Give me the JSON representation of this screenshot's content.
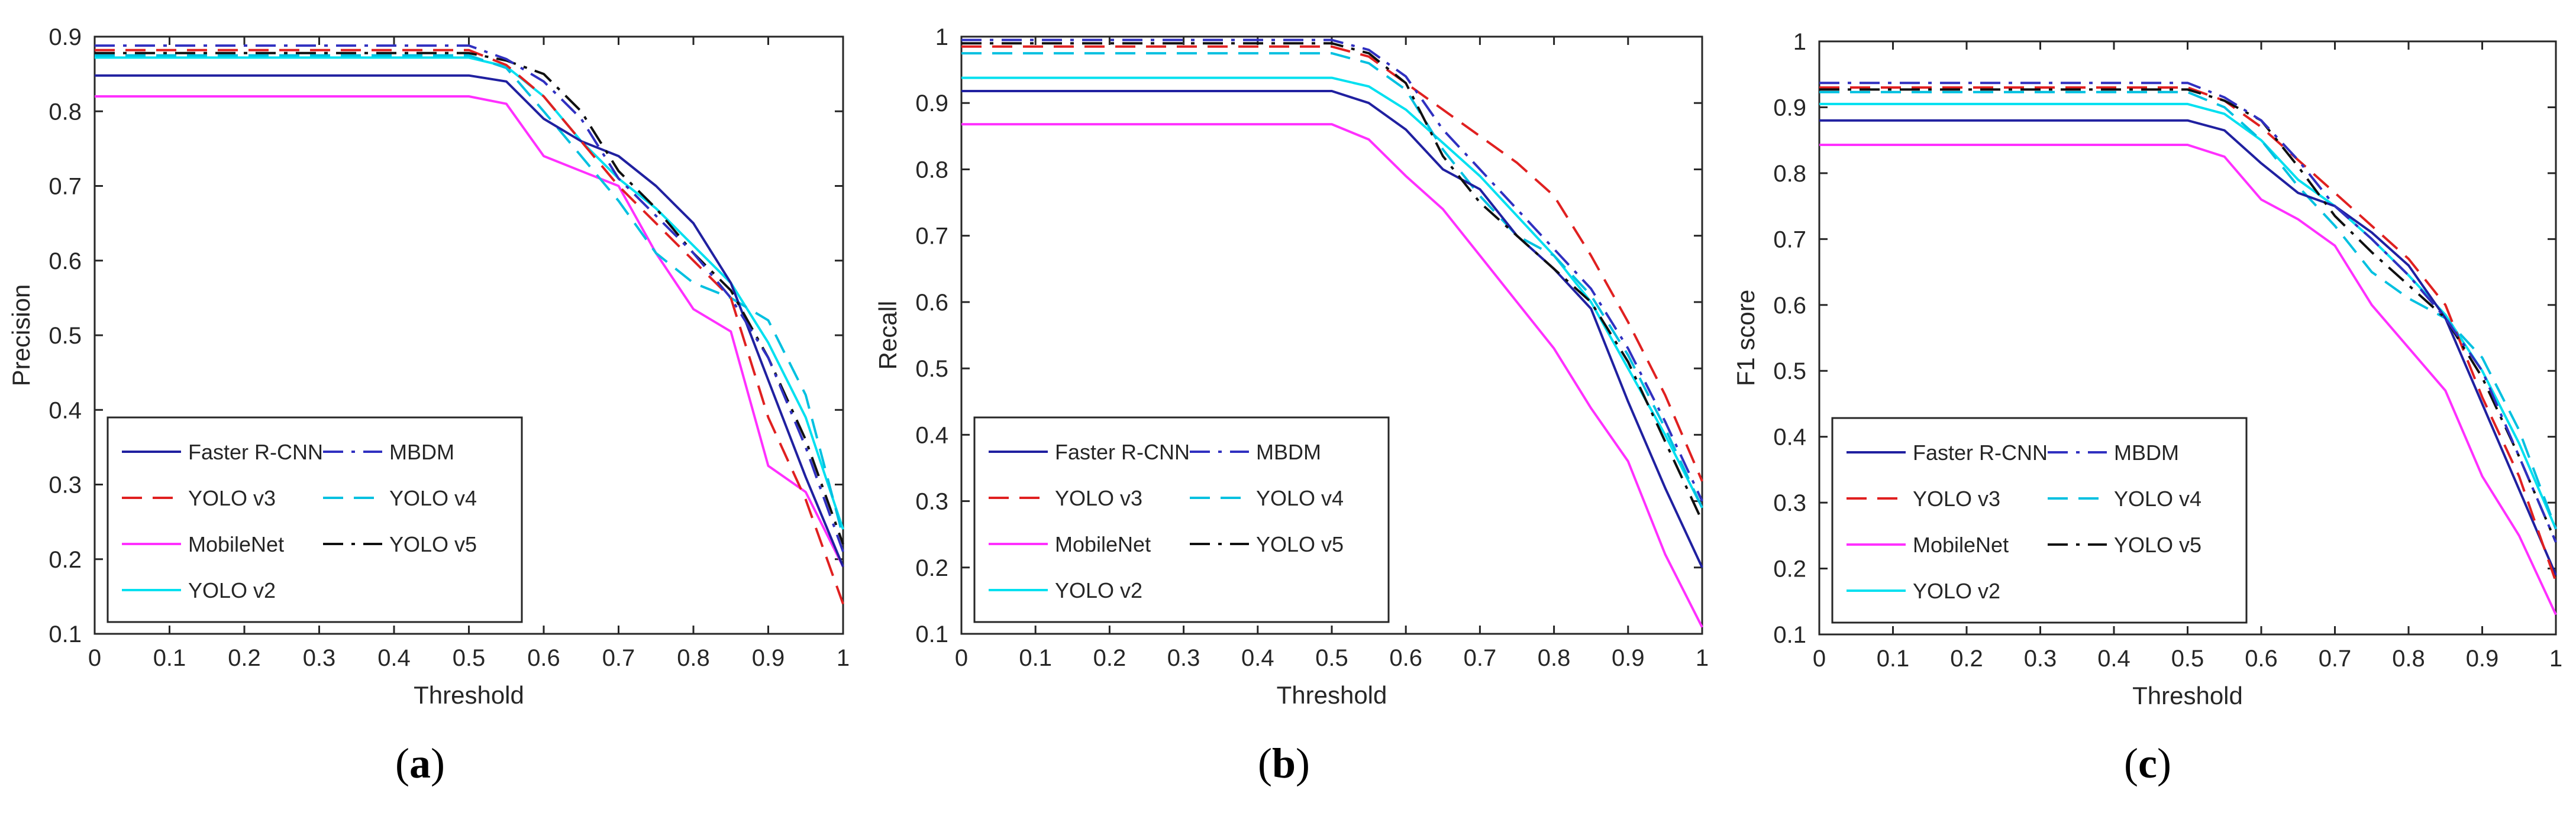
{
  "chart_data": [
    {
      "type": "line",
      "panel_label": "a",
      "xlabel": "Threshold",
      "ylabel": "Precision",
      "xlim": [
        0,
        1
      ],
      "ylim": [
        0.1,
        0.9
      ],
      "xticks": [
        "0",
        "0.1",
        "0.2",
        "0.3",
        "0.4",
        "0.5",
        "0.6",
        "0.7",
        "0.8",
        "0.9",
        "1"
      ],
      "yticks": [
        "0.1",
        "0.2",
        "0.3",
        "0.4",
        "0.5",
        "0.6",
        "0.7",
        "0.8",
        "0.9"
      ],
      "legend_position": "bottom-left",
      "series": [
        {
          "name": "Faster R-CNN",
          "x": [
            0,
            0.5,
            0.55,
            0.6,
            0.65,
            0.7,
            0.75,
            0.8,
            0.85,
            0.9,
            0.95,
            1.0
          ],
          "values": [
            0.848,
            0.848,
            0.84,
            0.79,
            0.76,
            0.74,
            0.7,
            0.65,
            0.57,
            0.44,
            0.31,
            0.19
          ]
        },
        {
          "name": "MBDM",
          "x": [
            0,
            0.5,
            0.55,
            0.6,
            0.65,
            0.7,
            0.75,
            0.8,
            0.85,
            0.9,
            0.95,
            1.0
          ],
          "values": [
            0.888,
            0.888,
            0.87,
            0.84,
            0.79,
            0.71,
            0.66,
            0.61,
            0.55,
            0.47,
            0.35,
            0.21
          ]
        },
        {
          "name": "YOLO v3",
          "x": [
            0,
            0.5,
            0.55,
            0.6,
            0.65,
            0.7,
            0.75,
            0.8,
            0.85,
            0.9,
            0.95,
            1.0
          ],
          "values": [
            0.882,
            0.882,
            0.862,
            0.82,
            0.76,
            0.7,
            0.65,
            0.6,
            0.55,
            0.39,
            0.28,
            0.14
          ]
        },
        {
          "name": "YOLO v4",
          "x": [
            0,
            0.5,
            0.55,
            0.6,
            0.65,
            0.7,
            0.75,
            0.8,
            0.85,
            0.9,
            0.95,
            1.0
          ],
          "values": [
            0.875,
            0.875,
            0.858,
            0.8,
            0.74,
            0.68,
            0.61,
            0.57,
            0.55,
            0.52,
            0.42,
            0.23
          ]
        },
        {
          "name": "MobileNet",
          "x": [
            0,
            0.5,
            0.55,
            0.6,
            0.65,
            0.7,
            0.75,
            0.8,
            0.85,
            0.9,
            0.95,
            1.0
          ],
          "values": [
            0.82,
            0.82,
            0.81,
            0.74,
            0.72,
            0.7,
            0.61,
            0.535,
            0.505,
            0.325,
            0.29,
            0.19
          ]
        },
        {
          "name": "YOLO v5",
          "x": [
            0,
            0.5,
            0.55,
            0.6,
            0.65,
            0.7,
            0.75,
            0.8,
            0.85,
            0.9,
            0.95,
            1.0
          ],
          "values": [
            0.878,
            0.878,
            0.868,
            0.85,
            0.8,
            0.72,
            0.67,
            0.61,
            0.56,
            0.47,
            0.36,
            0.22
          ]
        },
        {
          "name": "YOLO v2",
          "x": [
            0,
            0.5,
            0.55,
            0.6,
            0.65,
            0.7,
            0.75,
            0.8,
            0.85,
            0.9,
            0.95,
            1.0
          ],
          "values": [
            0.872,
            0.872,
            0.86,
            0.82,
            0.76,
            0.71,
            0.67,
            0.62,
            0.57,
            0.49,
            0.39,
            0.24
          ]
        }
      ]
    },
    {
      "type": "line",
      "panel_label": "b",
      "xlabel": "Threshold",
      "ylabel": "Recall",
      "xlim": [
        0,
        1
      ],
      "ylim": [
        0.1,
        1
      ],
      "xticks": [
        "0",
        "0.1",
        "0.2",
        "0.3",
        "0.4",
        "0.5",
        "0.6",
        "0.7",
        "0.8",
        "0.9",
        "1"
      ],
      "yticks": [
        "0.1",
        "0.2",
        "0.3",
        "0.4",
        "0.5",
        "0.6",
        "0.7",
        "0.8",
        "0.9",
        "1"
      ],
      "legend_position": "bottom-left",
      "series": [
        {
          "name": "Faster R-CNN",
          "x": [
            0,
            0.5,
            0.55,
            0.6,
            0.65,
            0.7,
            0.75,
            0.8,
            0.85,
            0.9,
            0.95,
            1.0
          ],
          "values": [
            0.918,
            0.918,
            0.9,
            0.86,
            0.8,
            0.77,
            0.7,
            0.65,
            0.59,
            0.45,
            0.32,
            0.2
          ]
        },
        {
          "name": "MBDM",
          "x": [
            0,
            0.5,
            0.55,
            0.6,
            0.65,
            0.7,
            0.75,
            0.8,
            0.85,
            0.9,
            0.95,
            1.0
          ],
          "values": [
            0.995,
            0.995,
            0.98,
            0.94,
            0.86,
            0.8,
            0.74,
            0.68,
            0.62,
            0.53,
            0.42,
            0.3
          ]
        },
        {
          "name": "YOLO v3",
          "x": [
            0,
            0.5,
            0.55,
            0.6,
            0.65,
            0.7,
            0.75,
            0.8,
            0.85,
            0.9,
            0.95,
            1.0
          ],
          "values": [
            0.985,
            0.985,
            0.97,
            0.93,
            0.89,
            0.85,
            0.81,
            0.76,
            0.67,
            0.57,
            0.46,
            0.33
          ]
        },
        {
          "name": "YOLO v4",
          "x": [
            0,
            0.5,
            0.55,
            0.6,
            0.65,
            0.7,
            0.75,
            0.8,
            0.85,
            0.9,
            0.95,
            1.0
          ],
          "values": [
            0.975,
            0.975,
            0.96,
            0.92,
            0.83,
            0.76,
            0.7,
            0.67,
            0.61,
            0.52,
            0.41,
            0.29
          ]
        },
        {
          "name": "MobileNet",
          "x": [
            0,
            0.5,
            0.55,
            0.6,
            0.65,
            0.7,
            0.75,
            0.8,
            0.85,
            0.9,
            0.95,
            1.0
          ],
          "values": [
            0.868,
            0.868,
            0.845,
            0.79,
            0.74,
            0.67,
            0.6,
            0.53,
            0.44,
            0.36,
            0.22,
            0.11
          ]
        },
        {
          "name": "YOLO v5",
          "x": [
            0,
            0.5,
            0.55,
            0.6,
            0.65,
            0.7,
            0.75,
            0.8,
            0.85,
            0.9,
            0.95,
            1.0
          ],
          "values": [
            0.99,
            0.99,
            0.975,
            0.93,
            0.82,
            0.75,
            0.7,
            0.65,
            0.6,
            0.51,
            0.39,
            0.27
          ]
        },
        {
          "name": "YOLO v2",
          "x": [
            0,
            0.5,
            0.55,
            0.6,
            0.65,
            0.7,
            0.75,
            0.8,
            0.85,
            0.9,
            0.95,
            1.0
          ],
          "values": [
            0.938,
            0.938,
            0.925,
            0.89,
            0.84,
            0.79,
            0.73,
            0.67,
            0.6,
            0.5,
            0.4,
            0.29
          ]
        }
      ]
    },
    {
      "type": "line",
      "panel_label": "c",
      "xlabel": "Threshold",
      "ylabel": "F1 score",
      "xlim": [
        0,
        1
      ],
      "ylim": [
        0.1,
        1
      ],
      "xticks": [
        "0",
        "0.1",
        "0.2",
        "0.3",
        "0.4",
        "0.5",
        "0.6",
        "0.7",
        "0.8",
        "0.9",
        "1"
      ],
      "yticks": [
        "0.1",
        "0.2",
        "0.3",
        "0.4",
        "0.5",
        "0.6",
        "0.7",
        "0.8",
        "0.9",
        "1"
      ],
      "legend_position": "bottom-left",
      "series": [
        {
          "name": "Faster R-CNN",
          "x": [
            0,
            0.5,
            0.55,
            0.6,
            0.65,
            0.7,
            0.75,
            0.8,
            0.85,
            0.9,
            0.95,
            1.0
          ],
          "values": [
            0.88,
            0.88,
            0.865,
            0.815,
            0.77,
            0.75,
            0.71,
            0.66,
            0.58,
            0.45,
            0.32,
            0.19
          ]
        },
        {
          "name": "MBDM",
          "x": [
            0,
            0.5,
            0.55,
            0.6,
            0.65,
            0.7,
            0.75,
            0.8,
            0.85,
            0.9,
            0.95,
            1.0
          ],
          "values": [
            0.937,
            0.937,
            0.915,
            0.88,
            0.82,
            0.75,
            0.7,
            0.645,
            0.58,
            0.5,
            0.37,
            0.24
          ]
        },
        {
          "name": "YOLO v3",
          "x": [
            0,
            0.5,
            0.55,
            0.6,
            0.65,
            0.7,
            0.75,
            0.8,
            0.85,
            0.9,
            0.95,
            1.0
          ],
          "values": [
            0.93,
            0.93,
            0.91,
            0.87,
            0.82,
            0.77,
            0.72,
            0.67,
            0.6,
            0.46,
            0.34,
            0.18
          ]
        },
        {
          "name": "YOLO v4",
          "x": [
            0,
            0.5,
            0.55,
            0.6,
            0.65,
            0.7,
            0.75,
            0.8,
            0.85,
            0.9,
            0.95,
            1.0
          ],
          "values": [
            0.923,
            0.923,
            0.9,
            0.85,
            0.78,
            0.72,
            0.65,
            0.61,
            0.58,
            0.52,
            0.41,
            0.26
          ]
        },
        {
          "name": "MobileNet",
          "x": [
            0,
            0.5,
            0.55,
            0.6,
            0.65,
            0.7,
            0.75,
            0.8,
            0.85,
            0.9,
            0.95,
            1.0
          ],
          "values": [
            0.843,
            0.843,
            0.825,
            0.76,
            0.73,
            0.69,
            0.6,
            0.535,
            0.47,
            0.34,
            0.25,
            0.13
          ]
        },
        {
          "name": "YOLO v5",
          "x": [
            0,
            0.5,
            0.55,
            0.6,
            0.65,
            0.7,
            0.75,
            0.8,
            0.85,
            0.9,
            0.95,
            1.0
          ],
          "values": [
            0.927,
            0.927,
            0.91,
            0.88,
            0.81,
            0.735,
            0.68,
            0.63,
            0.58,
            0.49,
            0.37,
            0.24
          ]
        },
        {
          "name": "YOLO v2",
          "x": [
            0,
            0.5,
            0.55,
            0.6,
            0.65,
            0.7,
            0.75,
            0.8,
            0.85,
            0.9,
            0.95,
            1.0
          ],
          "values": [
            0.905,
            0.905,
            0.89,
            0.85,
            0.79,
            0.75,
            0.7,
            0.645,
            0.585,
            0.5,
            0.39,
            0.26
          ]
        }
      ]
    }
  ],
  "style": {
    "series_colors": {
      "Faster R-CNN": "#2020a0",
      "MBDM": "#3030c0",
      "YOLO v3": "#e02020",
      "YOLO v4": "#00c0e0",
      "MobileNet": "#ff30ff",
      "YOLO v5": "#101010",
      "YOLO v2": "#00e0f0"
    },
    "series_dash": {
      "Faster R-CNN": "solid",
      "MBDM": "dashdot",
      "YOLO v3": "dashed",
      "YOLO v4": "dashed",
      "MobileNet": "solid",
      "YOLO v5": "dashdot",
      "YOLO v2": "solid"
    },
    "legend_order": [
      "Faster R-CNN",
      "MBDM",
      "YOLO v3",
      "YOLO v4",
      "MobileNet",
      "YOLO v5",
      "YOLO v2"
    ]
  }
}
